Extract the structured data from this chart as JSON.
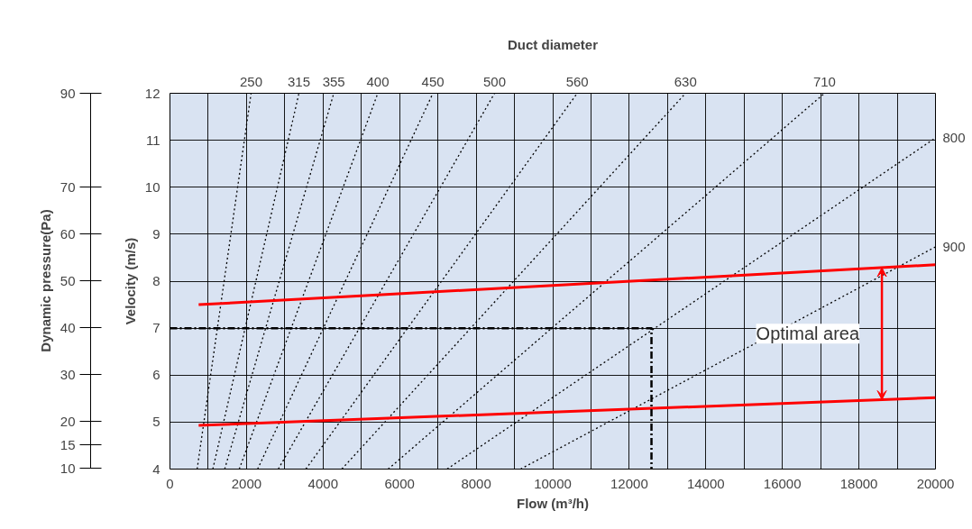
{
  "chart_data": {
    "type": "line",
    "title": "Duct diameter",
    "xlabel": "Flow (m³/h)",
    "ylabel": "Velocity (m/s)",
    "y3label": "Dynamic pressure(Pa)",
    "xlim": [
      0,
      20000
    ],
    "ylim": [
      4,
      12
    ],
    "xticks": [
      0,
      {
        "value": 1000,
        "label": null
      },
      2000,
      {
        "value": 3000,
        "label": null
      },
      4000,
      {
        "value": 5000,
        "label": null
      },
      6000,
      {
        "value": 7000,
        "label": null
      },
      8000,
      {
        "value": 9000,
        "label": null
      },
      10000,
      {
        "value": 11000,
        "label": null
      },
      12000,
      {
        "value": 13000,
        "label": null
      },
      14000,
      {
        "value": 15000,
        "label": null
      },
      16000,
      {
        "value": 17000,
        "label": null
      },
      18000,
      {
        "value": 19000,
        "label": null
      },
      20000
    ],
    "yticks": [
      4,
      5,
      6,
      7,
      8,
      9,
      10,
      11,
      12
    ],
    "y3lim": [
      10,
      90
    ],
    "y3ticks": [
      10,
      15,
      20,
      30,
      40,
      50,
      60,
      70,
      90
    ],
    "grid": true,
    "marker": "none",
    "line_style": "dotted",
    "series": [
      {
        "name": "250",
        "color": "#000000",
        "x": [
          710,
          2120
        ],
        "values": [
          4,
          12
        ]
      },
      {
        "name": "315",
        "color": "#000000",
        "x": [
          1120,
          3370
        ],
        "values": [
          4,
          12
        ]
      },
      {
        "name": "355",
        "color": "#000000",
        "x": [
          1430,
          4280
        ],
        "values": [
          4,
          12
        ]
      },
      {
        "name": "400",
        "color": "#000000",
        "x": [
          1810,
          5430
        ],
        "values": [
          4,
          12
        ]
      },
      {
        "name": "450",
        "color": "#000000",
        "x": [
          2290,
          6870
        ],
        "values": [
          4,
          12
        ]
      },
      {
        "name": "500",
        "color": "#000000",
        "x": [
          2830,
          8480
        ],
        "values": [
          4,
          12
        ]
      },
      {
        "name": "560",
        "color": "#000000",
        "x": [
          3550,
          10640
        ],
        "values": [
          4,
          12
        ]
      },
      {
        "name": "630",
        "color": "#000000",
        "x": [
          4490,
          13470
        ],
        "values": [
          4,
          12
        ]
      },
      {
        "name": "710",
        "color": "#000000",
        "x": [
          5700,
          17100
        ],
        "values": [
          4,
          12
        ]
      },
      {
        "name": "800",
        "color": "#000000",
        "x": [
          7240,
          20000
        ],
        "values": [
          4,
          11.05
        ]
      },
      {
        "name": "900",
        "color": "#000000",
        "x": [
          9160,
          20000
        ],
        "values": [
          4,
          8.73
        ]
      },
      {
        "color": "#ff0000",
        "line_style": "solid",
        "x": [
          750,
          20000
        ],
        "values": [
          7.5,
          8.35
        ]
      },
      {
        "color": "#ff0000",
        "line_style": "solid",
        "x": [
          750,
          20000
        ],
        "values": [
          4.93,
          5.52
        ]
      },
      {
        "color": "#000000",
        "line_style": "dashed",
        "x": [
          0,
          12580,
          12580
        ],
        "values": [
          7,
          7,
          4
        ]
      }
    ],
    "annotations": [
      "Optimal area"
    ]
  }
}
